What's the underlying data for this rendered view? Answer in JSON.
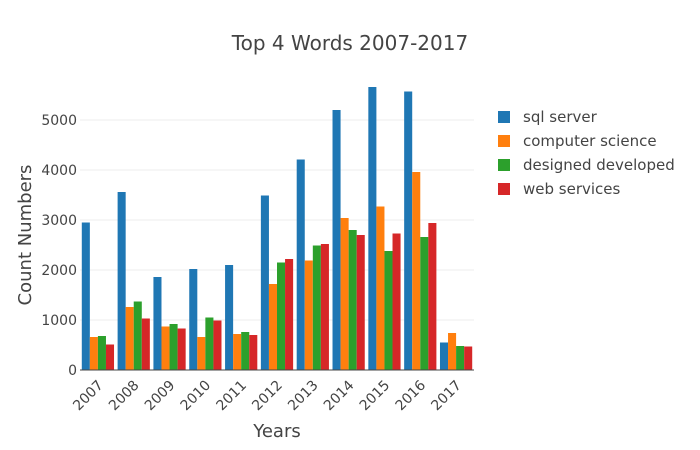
{
  "chart_data": {
    "type": "bar",
    "title": "Top 4 Words 2007-2017",
    "xlabel": "Years",
    "ylabel": "Count Numbers",
    "categories": [
      "2007",
      "2008",
      "2009",
      "2010",
      "2011",
      "2012",
      "2013",
      "2014",
      "2015",
      "2016",
      "2017"
    ],
    "ylim": [
      0,
      5800
    ],
    "yticks": [
      0,
      1000,
      2000,
      3000,
      4000,
      5000
    ],
    "grid": true,
    "legend_position": "right",
    "series": [
      {
        "name": "sql server",
        "color": "#1f77b4",
        "values": [
          2950,
          3560,
          1860,
          2020,
          2100,
          3490,
          4210,
          5200,
          5660,
          5570,
          550
        ]
      },
      {
        "name": "computer science",
        "color": "#ff7f0e",
        "values": [
          660,
          1260,
          870,
          660,
          720,
          1720,
          2190,
          3040,
          3270,
          3960,
          740
        ]
      },
      {
        "name": "designed developed",
        "color": "#2ca02c",
        "values": [
          680,
          1370,
          920,
          1050,
          760,
          2150,
          2490,
          2800,
          2380,
          2660,
          480
        ]
      },
      {
        "name": "web services",
        "color": "#d62728",
        "values": [
          510,
          1030,
          830,
          990,
          700,
          2220,
          2520,
          2700,
          2730,
          2940,
          470
        ]
      }
    ]
  }
}
